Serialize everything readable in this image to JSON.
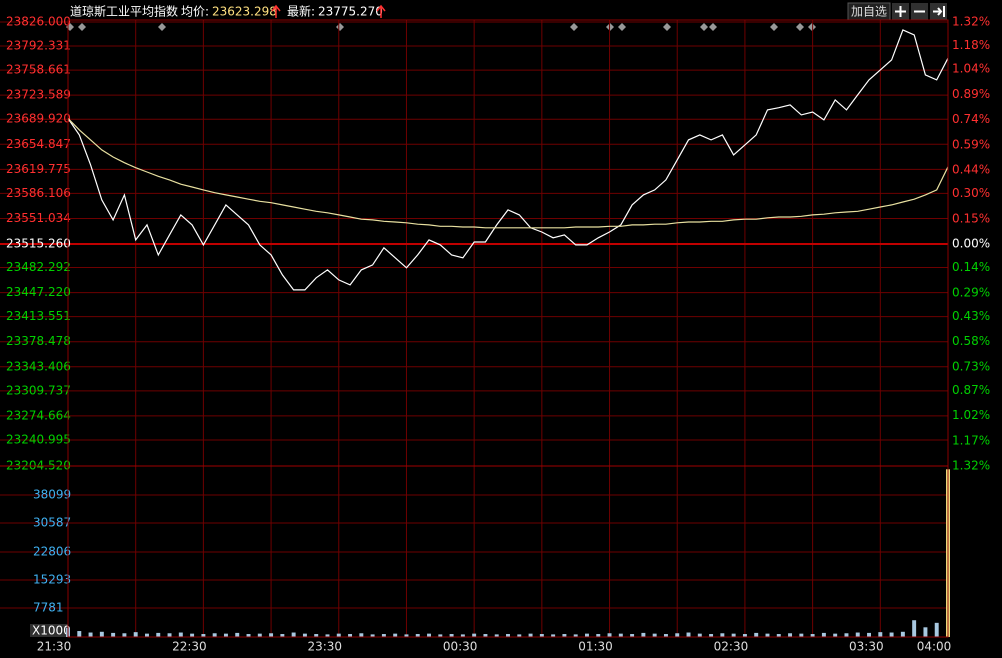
{
  "header": {
    "name": "道琼斯工业平均指数",
    "avg_label": "均价:",
    "avg": "23623.298",
    "last_label": "最新:",
    "last": "23775.270",
    "add": "加自选"
  },
  "chart_data": [
    {
      "type": "line",
      "categories": [
        "21:30",
        null,
        null,
        null,
        null,
        null,
        null,
        null,
        null,
        null,
        null,
        null,
        "22:30",
        null,
        null,
        null,
        null,
        null,
        null,
        null,
        null,
        null,
        null,
        null,
        "23:30",
        null,
        null,
        null,
        null,
        null,
        null,
        null,
        null,
        null,
        null,
        null,
        "00:30",
        null,
        null,
        null,
        null,
        null,
        null,
        null,
        null,
        null,
        null,
        null,
        "01:30",
        null,
        null,
        null,
        null,
        null,
        null,
        null,
        null,
        null,
        null,
        null,
        "02:30",
        null,
        null,
        null,
        null,
        null,
        null,
        null,
        null,
        null,
        null,
        null,
        "03:30",
        null,
        null,
        null,
        null,
        null,
        "04:00"
      ],
      "series": [
        {
          "color": "#ffffff",
          "values": [
            23691,
            23668,
            23626,
            23577,
            23549,
            23584,
            23521,
            23542,
            23500,
            23528,
            23556,
            23542,
            23514,
            23542,
            23570,
            23556,
            23542,
            23514,
            23500,
            23472,
            23451,
            23451,
            23468,
            23479,
            23465,
            23458,
            23479,
            23486,
            23510,
            23496,
            23482,
            23500,
            23521,
            23514,
            23500,
            23496,
            23518,
            23518,
            23542,
            23563,
            23556,
            23538,
            23532,
            23524,
            23528,
            23514,
            23514,
            23524,
            23532,
            23542,
            23570,
            23584,
            23591,
            23605,
            23633,
            23661,
            23668,
            23661,
            23668,
            23640,
            23654,
            23668,
            23703,
            23706,
            23710,
            23696,
            23700,
            23689,
            23717,
            23703,
            23724,
            23745,
            23759,
            23773,
            23815,
            23808,
            23752,
            23745,
            23775.27
          ]
        },
        {
          "color": "#e8e0a0",
          "values": [
            23691,
            23675,
            23661,
            23647,
            23637,
            23629,
            23622,
            23616,
            23610,
            23605,
            23599,
            23595,
            23591,
            23587,
            23584,
            23581,
            23578,
            23575,
            23573,
            23570,
            23567,
            23564,
            23561,
            23559,
            23556,
            23553,
            23550,
            23549,
            23547,
            23546,
            23545,
            23543,
            23542,
            23540,
            23540,
            23539,
            23539,
            23538,
            23538,
            23538,
            23538,
            23538,
            23538,
            23538,
            23538,
            23539,
            23539,
            23539,
            23540,
            23540,
            23542,
            23542,
            23543,
            23543,
            23545,
            23546,
            23546,
            23547,
            23547,
            23549,
            23550,
            23550,
            23552,
            23553,
            23553,
            23554,
            23556,
            23557,
            23559,
            23560,
            23561,
            23564,
            23567,
            23570,
            23574,
            23578,
            23584,
            23591,
            23623.298
          ]
        }
      ],
      "ylim": [
        23204.52,
        23826
      ],
      "yticks": [
        {
          "value": 23826,
          "label": "23826.000"
        },
        23792.331,
        23758.661,
        23723.589,
        {
          "value": 23689.92,
          "label": "23689.920"
        },
        23654.847,
        23619.775,
        23586.106,
        23551.034,
        {
          "value": 23515.26,
          "label": "23515.260"
        },
        23482.292,
        {
          "value": 23447.22,
          "label": "23447.220"
        },
        23413.551,
        23378.478,
        23343.406,
        23309.737,
        23274.664,
        23240.995,
        {
          "value": 23204.52,
          "label": "23204.520"
        }
      ],
      "y2lim": [
        -1.32,
        1.32
      ],
      "y2ticks": [
        {
          "value": 1.32,
          "label": "1.32%"
        },
        {
          "value": 1.18,
          "label": "1.18%"
        },
        {
          "value": 1.04,
          "label": "1.04%"
        },
        {
          "value": 0.89,
          "label": "0.89%"
        },
        {
          "value": 0.74,
          "label": "0.74%"
        },
        {
          "value": 0.59,
          "label": "0.59%"
        },
        {
          "value": 0.44,
          "label": "0.44%"
        },
        {
          "value": 0.3,
          "label": "0.30%"
        },
        {
          "value": 0.15,
          "label": "0.15%"
        },
        {
          "value": 0,
          "label": "0.00%"
        },
        {
          "value": -0.14,
          "label": "0.14%"
        },
        {
          "value": -0.29,
          "label": "0.29%"
        },
        {
          "value": -0.43,
          "label": "0.43%"
        },
        {
          "value": -0.58,
          "label": "0.58%"
        },
        {
          "value": -0.73,
          "label": "0.73%"
        },
        {
          "value": -0.87,
          "label": "0.87%"
        },
        {
          "value": -1.02,
          "label": "1.02%"
        },
        {
          "value": -1.17,
          "label": "1.17%"
        },
        {
          "value": -1.32,
          "label": "1.32%"
        }
      ],
      "up_color": "#ff3030",
      "down_color": "#00d000",
      "flat_color": "#ffffff",
      "grid_color": "#6e0000"
    },
    {
      "type": "bar",
      "color": "#a8c8e0",
      "values": [
        2500,
        1600,
        1200,
        1400,
        1100,
        1000,
        1300,
        900,
        1100,
        1000,
        1200,
        900,
        800,
        1000,
        900,
        1100,
        800,
        900,
        1000,
        800,
        1200,
        900,
        800,
        700,
        900,
        800,
        1000,
        700,
        800,
        900,
        700,
        800,
        900,
        700,
        800,
        700,
        900,
        800,
        700,
        800,
        700,
        900,
        800,
        700,
        800,
        700,
        900,
        800,
        1000,
        900,
        800,
        1100,
        900,
        800,
        1000,
        1200,
        900,
        800,
        1000,
        900,
        800,
        1100,
        900,
        800,
        1000,
        900,
        800,
        1100,
        900,
        1000,
        1200,
        1100,
        1300,
        1200,
        1400,
        4500,
        2600,
        3800,
        45000
      ],
      "ylim": [
        0,
        45881
      ],
      "yticks": [
        {
          "value": 0,
          "label": "X1000"
        },
        7781,
        15293,
        22806,
        30587,
        38099
      ],
      "tick_color": "#40b0f0"
    }
  ]
}
